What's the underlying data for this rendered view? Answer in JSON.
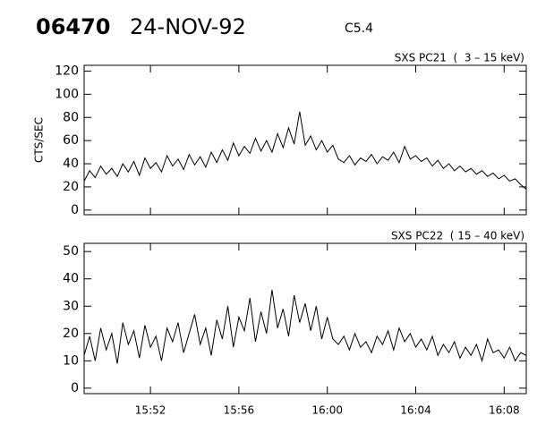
{
  "header": {
    "event": "06470",
    "date": "24-NOV-92",
    "class": "C5.4"
  },
  "chart_data": [
    {
      "type": "line",
      "title": "SXS PC21  (  3 – 15 keV)",
      "y_label": "CTS/SEC",
      "xlim": [
        949,
        969
      ],
      "xticks": [
        952,
        956,
        960,
        964,
        968
      ],
      "ylim": [
        -4,
        125
      ],
      "yticks": [
        0,
        20,
        40,
        60,
        80,
        100,
        120
      ],
      "x": [
        949,
        949.25,
        949.5,
        949.75,
        950,
        950.25,
        950.5,
        950.75,
        951,
        951.25,
        951.5,
        951.75,
        952,
        952.25,
        952.5,
        952.75,
        953,
        953.25,
        953.5,
        953.75,
        954,
        954.25,
        954.5,
        954.75,
        955,
        955.25,
        955.5,
        955.75,
        956,
        956.25,
        956.5,
        956.75,
        957,
        957.25,
        957.5,
        957.75,
        958,
        958.25,
        958.5,
        958.75,
        959,
        959.25,
        959.5,
        959.75,
        960,
        960.25,
        960.5,
        960.75,
        961,
        961.25,
        961.5,
        961.75,
        962,
        962.25,
        962.5,
        962.75,
        963,
        963.25,
        963.5,
        963.75,
        964,
        964.25,
        964.5,
        964.75,
        965,
        965.25,
        965.5,
        965.75,
        966,
        966.25,
        966.5,
        966.75,
        967,
        967.25,
        967.5,
        967.75,
        968,
        968.25,
        968.5,
        968.75,
        969
      ],
      "series": [
        {
          "color": "#000000",
          "values": [
            25,
            34,
            28,
            38,
            31,
            36,
            29,
            40,
            33,
            42,
            30,
            45,
            36,
            41,
            33,
            47,
            38,
            44,
            35,
            48,
            39,
            46,
            37,
            50,
            41,
            52,
            43,
            58,
            47,
            55,
            49,
            62,
            51,
            60,
            50,
            66,
            54,
            71,
            57,
            85,
            56,
            64,
            52,
            60,
            50,
            56,
            44,
            41,
            47,
            39,
            45,
            42,
            48,
            40,
            46,
            43,
            50,
            41,
            55,
            44,
            47,
            42,
            45,
            38,
            43,
            36,
            40,
            34,
            38,
            33,
            36,
            31,
            34,
            29,
            32,
            27,
            30,
            25,
            27,
            22,
            18
          ]
        }
      ]
    },
    {
      "type": "line",
      "title": "SXS PC22  ( 15 – 40 keV)",
      "xlim": [
        949,
        969
      ],
      "xticks": [
        {
          "value": 952,
          "label": "15:52"
        },
        {
          "value": 956,
          "label": "15:56"
        },
        {
          "value": 960,
          "label": "16:00"
        },
        {
          "value": 964,
          "label": "16:04"
        },
        {
          "value": 968,
          "label": "16:08"
        }
      ],
      "ylim": [
        -2,
        53
      ],
      "yticks": [
        0,
        10,
        20,
        30,
        40,
        50
      ],
      "x": [
        949,
        949.25,
        949.5,
        949.75,
        950,
        950.25,
        950.5,
        950.75,
        951,
        951.25,
        951.5,
        951.75,
        952,
        952.25,
        952.5,
        952.75,
        953,
        953.25,
        953.5,
        953.75,
        954,
        954.25,
        954.5,
        954.75,
        955,
        955.25,
        955.5,
        955.75,
        956,
        956.25,
        956.5,
        956.75,
        957,
        957.25,
        957.5,
        957.75,
        958,
        958.25,
        958.5,
        958.75,
        959,
        959.25,
        959.5,
        959.75,
        960,
        960.25,
        960.5,
        960.75,
        961,
        961.25,
        961.5,
        961.75,
        962,
        962.25,
        962.5,
        962.75,
        963,
        963.25,
        963.5,
        963.75,
        964,
        964.25,
        964.5,
        964.75,
        965,
        965.25,
        965.5,
        965.75,
        966,
        966.25,
        966.5,
        966.75,
        967,
        967.25,
        967.5,
        967.75,
        968,
        968.25,
        968.5,
        968.75,
        969
      ],
      "series": [
        {
          "color": "#000000",
          "values": [
            12,
            19,
            10,
            22,
            14,
            20,
            9,
            24,
            16,
            21,
            11,
            23,
            15,
            19,
            10,
            22,
            17,
            24,
            13,
            20,
            27,
            16,
            22,
            12,
            25,
            18,
            30,
            15,
            26,
            21,
            33,
            17,
            28,
            20,
            36,
            22,
            29,
            19,
            34,
            24,
            31,
            21,
            30,
            18,
            26,
            18,
            16,
            19,
            14,
            20,
            15,
            17,
            13,
            19,
            16,
            21,
            14,
            22,
            17,
            20,
            15,
            18,
            14,
            19,
            12,
            16,
            13,
            17,
            11,
            15,
            12,
            16,
            10,
            18,
            13,
            14,
            11,
            15,
            10,
            13,
            12
          ]
        }
      ]
    }
  ]
}
